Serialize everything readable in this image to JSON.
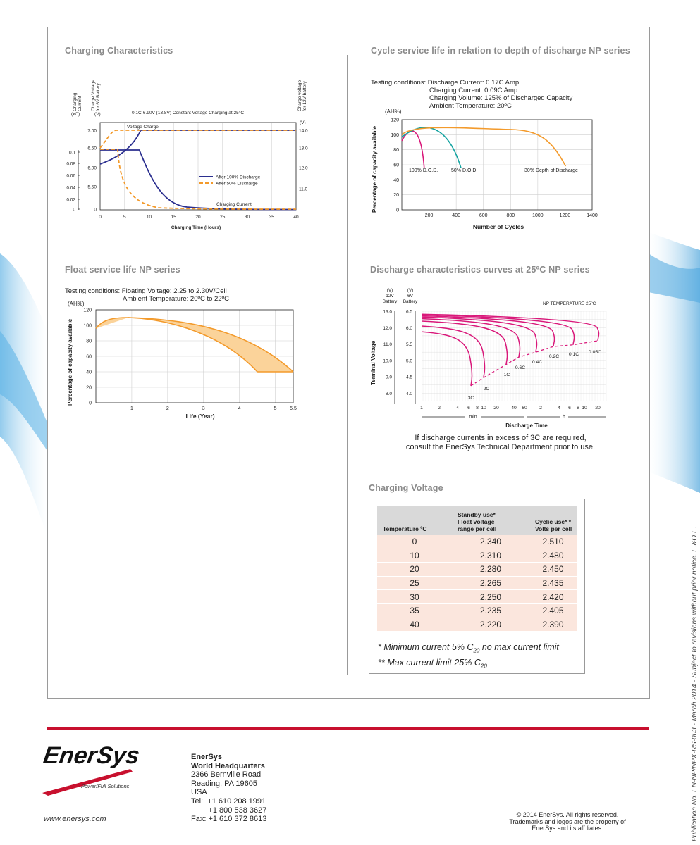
{
  "charging_characteristics": {
    "title": "Charging Characteristics",
    "axis_current": [
      "Charging",
      "Current"
    ],
    "axis_voltage_6v": [
      "Charge Voltage",
      "for 6V Battery"
    ],
    "axis_voltage_12v": [
      "Charge voltage",
      "for 12V battery"
    ],
    "unit_current": "(xC)",
    "unit_voltage_left": "(V)",
    "unit_voltage_right": "(V)",
    "header_note": "0.1C-6.90V (13.8V) Constant Voltage Charging at 25°C",
    "label_voltage_charge": "Voltage Charge",
    "label_charging_current": "Charging Current",
    "legend": [
      "After 100% Discharge",
      "After 50% Discharge"
    ],
    "xlabel": "Charging Time (Hours)",
    "x_ticks": [
      "0",
      "5",
      "10",
      "15",
      "20",
      "25",
      "30",
      "35",
      "40"
    ],
    "y_current_ticks": [
      "0.1",
      "0.08",
      "0.06",
      "0.04",
      "0.02",
      "0"
    ],
    "y_voltage_6v_ticks": [
      "7.00",
      "6.50",
      "6.00",
      "5.50",
      "0"
    ],
    "y_voltage_12v_ticks": [
      "14.0",
      "13.0",
      "12.0",
      "11.0"
    ]
  },
  "cycle_life": {
    "title": "Cycle service life in relation to depth of discharge NP series",
    "test_conditions": [
      "Testing conditions: Discharge Current: 0.17C Amp.",
      "Charging Current: 0.09C Amp.",
      "Charging Volume: 125% of Discharged Capacity",
      "Ambient Temperature: 20ºC"
    ],
    "unit": "(AH%)",
    "ylabel": "Percentage of capacity available",
    "xlabel": "Number of Cycles",
    "x_ticks": [
      "200",
      "400",
      "600",
      "800",
      "1000",
      "1200",
      "1400"
    ],
    "y_ticks": [
      "120",
      "100",
      "80",
      "60",
      "40",
      "20",
      "0"
    ],
    "curve_labels": [
      "100% D.O.D.",
      "50% D.O.D.",
      "30% Depth of Discharge"
    ]
  },
  "float_life": {
    "title": "Float service life NP series",
    "test_conditions": [
      "Testing conditions: Floating Voltage: 2.25 to 2.30V/Cell",
      "Ambient Temperature: 20ºC to 22ºC"
    ],
    "unit": "(AH%)",
    "ylabel": "Percentage of capacity available",
    "xlabel": "Life (Year)",
    "x_ticks": [
      "1",
      "2",
      "3",
      "4",
      "5",
      "5.5"
    ],
    "y_ticks": [
      "120",
      "100",
      "80",
      "60",
      "40",
      "20",
      "0"
    ]
  },
  "discharge_curves": {
    "title": "Discharge characteristics curves at 25ºC NP series",
    "col_12v": [
      "(V)",
      "12V",
      "Battery"
    ],
    "col_6v": [
      "(V)",
      "6V",
      "Battery"
    ],
    "series_label": "NP   TEMPERATURE 25ºC",
    "ylabel": "Terminal Voltage",
    "xlabel": "Discharge Time",
    "y_12v_ticks": [
      "13.0",
      "12.0",
      "11.0",
      "10.0",
      "9.0",
      "8.0"
    ],
    "y_6v_ticks": [
      "6.5",
      "6.0",
      "5.5",
      "5.0",
      "4.5",
      "4.0"
    ],
    "x_ticks": [
      "1",
      "2",
      "4",
      "6",
      "8",
      "10",
      "20",
      "40",
      "60",
      "2",
      "4",
      "6",
      "8",
      "10",
      "20"
    ],
    "x_unit_min": "min",
    "x_unit_h": "h",
    "rate_labels": [
      "3C",
      "2C",
      "1C",
      "0.6C",
      "0.4C",
      "0.2C",
      "0.1C",
      "0.05C"
    ],
    "note": [
      "If discharge currents in excess of 3C are required,",
      "consult the EnerSys Technical Department prior to use."
    ]
  },
  "charging_voltage": {
    "title": "Charging Voltage",
    "headers": [
      "Temperature ºC",
      "Standby use* Float voltage range per cell",
      "Cyclic use* * Volts per cell"
    ],
    "header_lines": [
      [
        "Temperature ºC"
      ],
      [
        "Standby use*",
        "Float voltage",
        "range per cell"
      ],
      [
        "Cyclic use* *",
        "Volts per cell"
      ]
    ],
    "rows": [
      [
        "0",
        "2.340",
        "2.510"
      ],
      [
        "10",
        "2.310",
        "2.480"
      ],
      [
        "20",
        "2.280",
        "2.450"
      ],
      [
        "25",
        "2.265",
        "2.435"
      ],
      [
        "30",
        "2.250",
        "2.420"
      ],
      [
        "35",
        "2.235",
        "2.405"
      ],
      [
        "40",
        "2.220",
        "2.390"
      ]
    ],
    "footnote1_pre": "* Minimum current 5% C",
    "footnote1_sub": "20",
    "footnote1_post": " no max current limit",
    "footnote2_pre": "** Max current limit 25% C",
    "footnote2_sub": "20"
  },
  "footer": {
    "logo_text": "EnerSys",
    "logo_reg": "®",
    "logo_tagline": "Power/Full Solutions",
    "website": "www.enersys.com",
    "company": "EnerSys",
    "hq": "World Headquarters",
    "address_lines": [
      "2366 Bernville Road",
      "Reading, PA 19605",
      "USA",
      "Tel:  +1 610 208 1991",
      "        +1 800 538 3627",
      "Fax: +1 610 372 8613"
    ],
    "copyright_lines": [
      "© 2014 EnerSys. All rights reserved.",
      "Trademarks and logos are the property of",
      "EnerSys and its aff liates."
    ],
    "publication": "Publication No. EN-NP/NPX-RS-003 - March 2014  -  Subject to revisions without prior notice. E.&O.E."
  },
  "colors": {
    "accent_red": "#c8102e",
    "navy": "#2b2f8f",
    "orange": "#f39a2b",
    "magenta": "#d9187a",
    "teal": "#13a3a0"
  }
}
